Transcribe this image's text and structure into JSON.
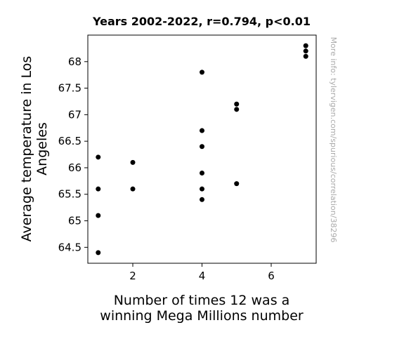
{
  "chart_data": {
    "type": "scatter",
    "title": "Years 2002-2022, r=0.794, p<0.01",
    "xlabel_lines": [
      "Number of times 12 was a",
      "winning Mega Millions number"
    ],
    "ylabel_lines": [
      "Average temperature in Los",
      "Angeles"
    ],
    "xlim": [
      0.7,
      7.3
    ],
    "ylim": [
      64.2,
      68.5
    ],
    "xticks": [
      2,
      4,
      6
    ],
    "yticks": [
      64.5,
      65,
      65.5,
      66,
      66.5,
      67,
      67.5,
      68
    ],
    "grid": false,
    "points": [
      {
        "x": 1,
        "y": 66.2
      },
      {
        "x": 1,
        "y": 65.6
      },
      {
        "x": 1,
        "y": 65.1
      },
      {
        "x": 1,
        "y": 64.4
      },
      {
        "x": 2,
        "y": 66.1
      },
      {
        "x": 2,
        "y": 65.6
      },
      {
        "x": 4,
        "y": 67.8
      },
      {
        "x": 4,
        "y": 66.7
      },
      {
        "x": 4,
        "y": 66.4
      },
      {
        "x": 4,
        "y": 65.9
      },
      {
        "x": 4,
        "y": 65.6
      },
      {
        "x": 4,
        "y": 65.4
      },
      {
        "x": 5,
        "y": 67.2
      },
      {
        "x": 5,
        "y": 67.1
      },
      {
        "x": 5,
        "y": 65.7
      },
      {
        "x": 7,
        "y": 68.3
      },
      {
        "x": 7,
        "y": 68.2
      },
      {
        "x": 7,
        "y": 68.1
      }
    ],
    "point_color": "#000000"
  },
  "watermark": "More info: tylervigen.com/spurious/correlation/38296"
}
